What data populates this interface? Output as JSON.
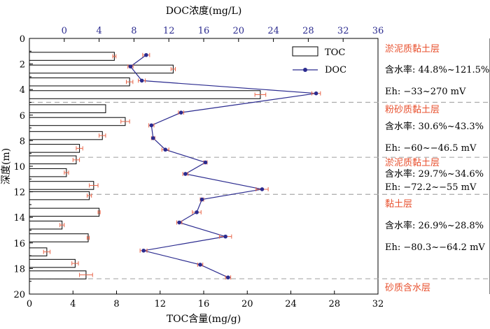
{
  "chart_data": {
    "type": "bar+line",
    "orientation": "horizontal-bars, depth-profile",
    "ylabel": "深度(m)",
    "ylim": [
      20,
      0
    ],
    "yticks": [
      0,
      2,
      4,
      6,
      8,
      10,
      12,
      14,
      16,
      18,
      20
    ],
    "bottom_axis": {
      "label": "TOC含量(mg/g)",
      "lim": [
        0,
        32
      ],
      "ticks": [
        0,
        4,
        8,
        12,
        16,
        20,
        24,
        28,
        32
      ]
    },
    "top_axis": {
      "label": "DOC浓度(mg/L)",
      "lim": [
        -4,
        36
      ],
      "ticks": [
        0,
        4,
        8,
        12,
        16,
        20,
        24,
        28,
        32,
        36
      ]
    },
    "series": [
      {
        "name": "TOC",
        "kind": "bar",
        "axis": "bottom",
        "color": "#000000",
        "points": [
          {
            "depth": 1.4,
            "value": 7.8,
            "err": 0.15
          },
          {
            "depth": 2.4,
            "value": 13.2,
            "err": 0.2
          },
          {
            "depth": 3.4,
            "value": 9.2,
            "err": 0.3
          },
          {
            "depth": 4.4,
            "value": 21.2,
            "err": 0.5
          },
          {
            "depth": 5.5,
            "value": 7.0,
            "err": 0
          },
          {
            "depth": 6.5,
            "value": 8.8,
            "err": 0.4
          },
          {
            "depth": 7.6,
            "value": 6.7,
            "err": 0.3
          },
          {
            "depth": 8.6,
            "value": 4.6,
            "err": 0.3
          },
          {
            "depth": 9.5,
            "value": 4.3,
            "err": 0.3
          },
          {
            "depth": 10.5,
            "value": 3.4,
            "err": 0.2
          },
          {
            "depth": 11.5,
            "value": 5.9,
            "err": 0.4
          },
          {
            "depth": 12.3,
            "value": 5.5,
            "err": 0.2
          },
          {
            "depth": 13.6,
            "value": 6.4,
            "err": 0.1
          },
          {
            "depth": 14.6,
            "value": 3.0,
            "err": 0.2
          },
          {
            "depth": 15.6,
            "value": 5.4,
            "err": 0.1
          },
          {
            "depth": 16.7,
            "value": 1.6,
            "err": 0.3
          },
          {
            "depth": 17.6,
            "value": 4.2,
            "err": 0.3
          },
          {
            "depth": 18.5,
            "value": 5.2,
            "err": 0.6
          }
        ]
      },
      {
        "name": "DOC",
        "kind": "line",
        "axis": "top",
        "color": "#2b2b8f",
        "points": [
          {
            "depth": 1.3,
            "value": 9.4,
            "err": 0.4
          },
          {
            "depth": 2.2,
            "value": 7.6,
            "err": 0.3
          },
          {
            "depth": 3.3,
            "value": 8.9,
            "err": 0.4
          },
          {
            "depth": 4.3,
            "value": 28.9,
            "err": 0.5
          },
          {
            "depth": 5.8,
            "value": 13.4,
            "err": 0.3
          },
          {
            "depth": 6.8,
            "value": 10.0,
            "err": 0.3
          },
          {
            "depth": 7.8,
            "value": 10.2,
            "err": 0.2
          },
          {
            "depth": 8.7,
            "value": 11.6,
            "err": 0.4
          },
          {
            "depth": 9.7,
            "value": 16.2,
            "err": 0.2
          },
          {
            "depth": 10.6,
            "value": 13.9,
            "err": 0.3
          },
          {
            "depth": 11.8,
            "value": 22.7,
            "err": 0.7
          },
          {
            "depth": 12.6,
            "value": 15.8,
            "err": 0.2
          },
          {
            "depth": 13.6,
            "value": 15.2,
            "err": 0.5
          },
          {
            "depth": 14.4,
            "value": 13.2,
            "err": 0.3
          },
          {
            "depth": 15.5,
            "value": 18.5,
            "err": 0.7
          },
          {
            "depth": 16.6,
            "value": 9.1,
            "err": 0.4
          },
          {
            "depth": 17.7,
            "value": 15.6,
            "err": 0.3
          },
          {
            "depth": 18.7,
            "value": 18.8,
            "err": 0.3
          }
        ]
      }
    ],
    "error_bar_color": "#e8664a",
    "layer_boundaries_depth": [
      5.0,
      9.3,
      12.2,
      18.8
    ],
    "boundary_color": "#aaaaaa",
    "legend": {
      "placement": "top-right",
      "entries": [
        {
          "label": "TOC",
          "symbol": "bar"
        },
        {
          "label": "DOC",
          "symbol": "line-dot"
        }
      ]
    },
    "annotations": [
      {
        "name": "layer-1-name",
        "text": "淤泥质黏土层",
        "color": "#e8512f"
      },
      {
        "name": "layer-1-water",
        "text": "含水率: 44.8%~121.5%",
        "color": "#000000"
      },
      {
        "name": "layer-1-eh",
        "text": "Eh: −33~270 mV",
        "color": "#000000"
      },
      {
        "name": "layer-2-name",
        "text": "粉砂质黏土层",
        "color": "#e8512f"
      },
      {
        "name": "layer-2-water",
        "text": "含水率: 30.6%~43.3%",
        "color": "#000000"
      },
      {
        "name": "layer-2-eh",
        "text": "Eh: −60~−46.5 mV",
        "color": "#000000"
      },
      {
        "name": "layer-3-name",
        "text": "淤泥质黏土层",
        "color": "#e8512f"
      },
      {
        "name": "layer-3-water",
        "text": "含水率: 29.7%~34.6%",
        "color": "#000000"
      },
      {
        "name": "layer-3-eh",
        "text": "Eh: −72.2~−55 mV",
        "color": "#000000"
      },
      {
        "name": "layer-4-name",
        "text": "黏土层",
        "color": "#e8512f"
      },
      {
        "name": "layer-4-water",
        "text": "含水率: 26.9%~28.8%",
        "color": "#000000"
      },
      {
        "name": "layer-4-eh",
        "text": "Eh: −80.3~−64.2 mV",
        "color": "#000000"
      },
      {
        "name": "layer-5-name",
        "text": "砂质含水层",
        "color": "#e8512f"
      }
    ],
    "colors": {
      "axis": "#000000",
      "top_axis": "#2b2b8f",
      "annotation_layer": "#e8512f"
    }
  }
}
